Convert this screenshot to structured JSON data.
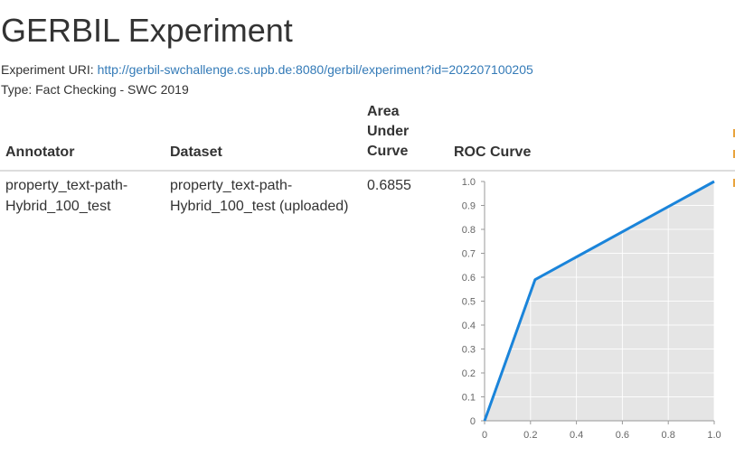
{
  "page": {
    "title": "GERBIL Experiment",
    "uri_label": "Experiment URI:",
    "uri": "http://gerbil-swchallenge.cs.upb.de:8080/gerbil/experiment?id=202207100205",
    "type_line": "Type: Fact Checking - SWC 2019"
  },
  "table": {
    "headers": {
      "annotator": "Annotator",
      "dataset": "Dataset",
      "auc": "Area Under Curve",
      "roc": "ROC Curve"
    },
    "rows": [
      {
        "annotator": "property_text-path-Hybrid_100_test",
        "dataset": "property_text-path-Hybrid_100_test (uploaded)",
        "auc": "0.6855"
      }
    ]
  },
  "chart_data": {
    "type": "area",
    "x": [
      0,
      0.22,
      1.0
    ],
    "y": [
      0,
      0.59,
      1.0
    ],
    "xlim": [
      0,
      1.0
    ],
    "ylim": [
      0,
      1.0
    ],
    "xticks": [
      "0",
      "0.2",
      "0.4",
      "0.6",
      "0.8",
      "1.0"
    ],
    "yticks": [
      "0",
      "0.1",
      "0.2",
      "0.3",
      "0.4",
      "0.5",
      "0.6",
      "0.7",
      "0.8",
      "0.9",
      "1.0"
    ],
    "grid": true,
    "line_color": "#1a84da",
    "fill_color": "#e5e5e5"
  }
}
